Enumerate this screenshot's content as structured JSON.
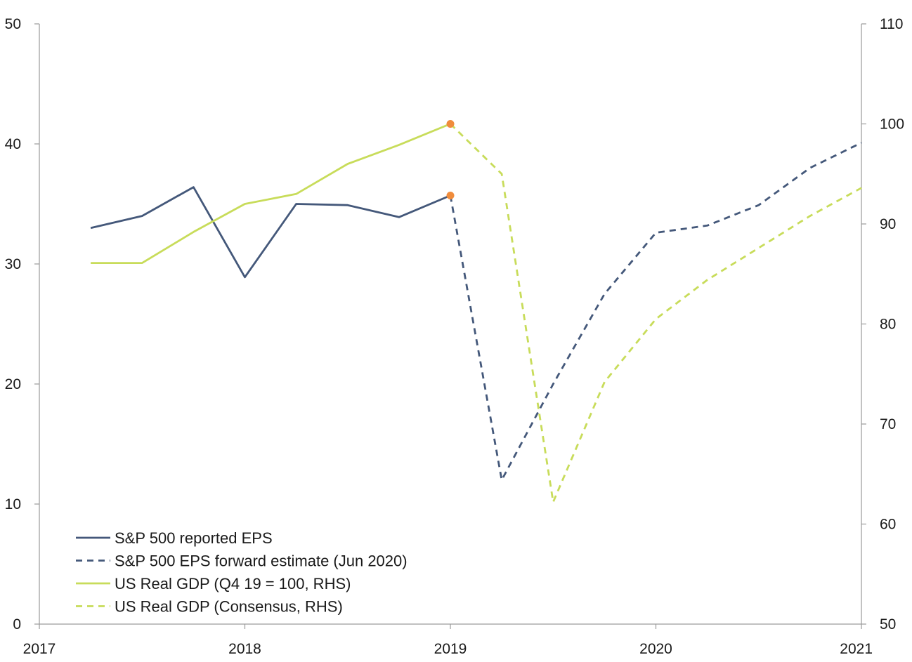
{
  "chart_data": {
    "type": "line",
    "title": "",
    "x_axis": {
      "min": 2017,
      "max": 2021,
      "ticks": [
        2017,
        2018,
        2019,
        2020,
        2021
      ]
    },
    "y_axis_left": {
      "min": 0,
      "max": 50,
      "ticks": [
        0,
        10,
        20,
        30,
        40,
        50
      ]
    },
    "y_axis_right": {
      "min": 50,
      "max": 110,
      "ticks": [
        50,
        60,
        70,
        80,
        90,
        100,
        110
      ]
    },
    "grid": false,
    "legend_position": "bottom-left",
    "series": [
      {
        "name": "S&P 500 reported EPS",
        "axis": "left",
        "style": "solid",
        "color": "#44587a",
        "x": [
          2017.25,
          2017.5,
          2017.75,
          2018.0,
          2018.25,
          2018.5,
          2018.75,
          2019.0
        ],
        "y": [
          33.0,
          34.0,
          36.4,
          28.9,
          35.0,
          34.9,
          33.9,
          35.7
        ]
      },
      {
        "name": "S&P 500 EPS forward estimate (Jun 2020)",
        "axis": "left",
        "style": "dashed",
        "color": "#44587a",
        "x": [
          2019.0,
          2019.25,
          2019.5,
          2019.75,
          2020.0,
          2020.25,
          2020.5,
          2020.75,
          2021.0
        ],
        "y": [
          35.7,
          12.0,
          20.0,
          27.5,
          32.6,
          33.2,
          34.9,
          38.0,
          40.1
        ]
      },
      {
        "name": "US Real GDP (Q4 19 = 100, RHS)",
        "axis": "right",
        "style": "solid",
        "color": "#c8dc5a",
        "x": [
          2017.25,
          2017.5,
          2017.75,
          2018.0,
          2018.25,
          2018.5,
          2018.75,
          2019.0
        ],
        "y": [
          86.1,
          86.1,
          89.2,
          92.0,
          93.0,
          96.0,
          97.9,
          100.0
        ]
      },
      {
        "name": "US Real GDP (Consensus, RHS)",
        "axis": "right",
        "style": "dashed",
        "color": "#c8dc5a",
        "x": [
          2019.0,
          2019.25,
          2019.5,
          2019.75,
          2020.0,
          2020.25,
          2020.5,
          2020.75,
          2021.0
        ],
        "y": [
          100.0,
          95.0,
          62.2,
          74.2,
          80.5,
          84.4,
          87.6,
          90.8,
          93.6
        ]
      }
    ],
    "markers": [
      {
        "axis": "left",
        "x": 2019.0,
        "y": 35.7,
        "color": "#f08c3c"
      },
      {
        "axis": "right",
        "x": 2019.0,
        "y": 100.0,
        "color": "#f08c3c"
      }
    ]
  }
}
